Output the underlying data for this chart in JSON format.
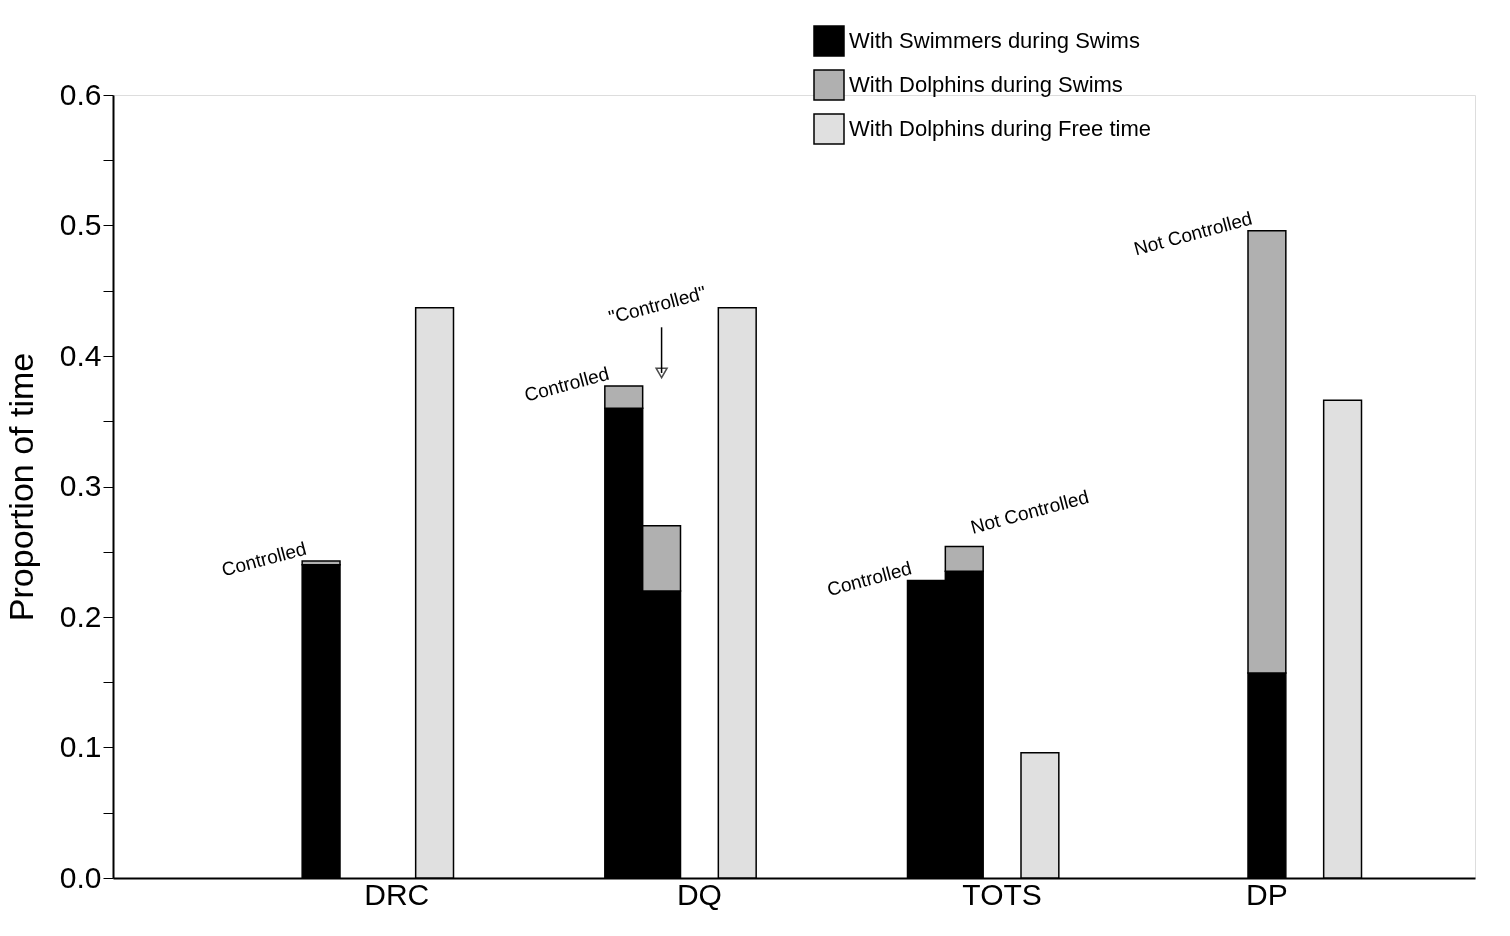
{
  "chart_data": {
    "type": "bar",
    "stacked": true,
    "ylabel": "Proportion of time",
    "categories": [
      null,
      null,
      null,
      null,
      null,
      null,
      null,
      "DRC",
      null,
      null,
      null,
      null,
      null,
      null,
      null,
      "DQ",
      null,
      null,
      null,
      null,
      null,
      null,
      null,
      "TOTS",
      null,
      null,
      null,
      null,
      null,
      null,
      "DP",
      null,
      null,
      null,
      null,
      null
    ],
    "ylim": [
      0,
      0.6
    ],
    "yticks": [
      {
        "value": 0,
        "label": "0.0"
      },
      {
        "value": 0.05,
        "label": null
      },
      0.1,
      {
        "value": 0.15,
        "label": null
      },
      0.2,
      {
        "value": 0.25,
        "label": null
      },
      0.3,
      {
        "value": 0.35,
        "label": null
      },
      0.4,
      {
        "value": 0.45,
        "label": null
      },
      0.5,
      {
        "value": 0.55,
        "label": null
      },
      0.6
    ],
    "grid": false,
    "legend": "top right",
    "series": [
      {
        "name": "With Swimmers during Swims",
        "color": "#000000",
        "values": [
          null,
          null,
          null,
          null,
          null,
          0.24,
          null,
          null,
          null,
          null,
          null,
          null,
          null,
          0.36,
          0.22,
          null,
          null,
          null,
          null,
          null,
          null,
          0.228,
          0.235,
          null,
          null,
          null,
          null,
          null,
          null,
          null,
          0.157,
          null,
          null,
          null,
          null,
          null
        ]
      },
      {
        "name": "With Dolphins during Swims",
        "color": "#b0b0b0",
        "values": [
          null,
          null,
          null,
          null,
          null,
          0.003,
          null,
          null,
          null,
          null,
          null,
          null,
          null,
          0.017,
          0.05,
          null,
          null,
          null,
          null,
          null,
          null,
          null,
          0.019,
          null,
          null,
          null,
          null,
          null,
          null,
          null,
          0.339,
          null,
          null,
          null,
          null,
          null
        ]
      },
      {
        "name": "With Dolphins during Free time",
        "color": "#e0e0e0",
        "values": [
          null,
          null,
          null,
          null,
          null,
          null,
          null,
          null,
          0.437,
          null,
          null,
          null,
          null,
          null,
          null,
          null,
          0.437,
          null,
          null,
          null,
          null,
          null,
          null,
          null,
          0.096,
          null,
          null,
          null,
          null,
          null,
          null,
          null,
          0.366,
          null,
          null,
          null
        ]
      }
    ],
    "annotations": [
      "Controlled",
      "Controlled",
      "\"Controlled\"",
      "Controlled",
      "Not Controlled",
      "Not Controlled"
    ]
  }
}
